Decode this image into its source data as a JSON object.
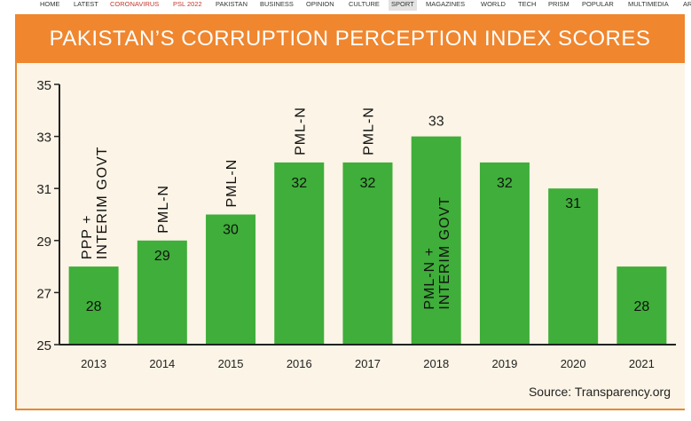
{
  "nav": {
    "items": [
      {
        "label": "HOME",
        "color": "#333333"
      },
      {
        "label": "LATEST",
        "color": "#333333"
      },
      {
        "label": "CORONAVIRUS",
        "color": "#c0392b"
      },
      {
        "label": "PSL 2022",
        "color": "#c0392b"
      },
      {
        "label": "PAKISTAN",
        "color": "#333333"
      },
      {
        "label": "BUSINESS",
        "color": "#333333"
      },
      {
        "label": "OPINION",
        "color": "#333333"
      },
      {
        "label": "CULTURE",
        "color": "#333333"
      },
      {
        "label": "SPORT",
        "color": "#333333",
        "active": true
      },
      {
        "label": "MAGAZINES",
        "color": "#333333"
      },
      {
        "label": "WORLD",
        "color": "#333333"
      },
      {
        "label": "TECH",
        "color": "#333333"
      },
      {
        "label": "PRISM",
        "color": "#333333"
      },
      {
        "label": "POPULAR",
        "color": "#333333"
      },
      {
        "label": "MULTIMEDIA",
        "color": "#333333"
      },
      {
        "label": "AR",
        "color": "#333333"
      }
    ]
  },
  "colors": {
    "bar": "#3fae3a",
    "title_band": "#f0862e",
    "card_background": "#fcf4e6",
    "axis": "#222222"
  },
  "chart_data": {
    "type": "bar",
    "title": "PAKISTAN’S CORRUPTION PERCEPTION INDEX SCORES",
    "categories": [
      "2013",
      "2014",
      "2015",
      "2016",
      "2017",
      "2018",
      "2019",
      "2020",
      "2021"
    ],
    "values": [
      28,
      29,
      30,
      32,
      32,
      33,
      32,
      31,
      28
    ],
    "value_labels": [
      "28",
      "29",
      "30",
      "32",
      "32",
      "33",
      "32",
      "31",
      "28"
    ],
    "party_labels": [
      [
        "PPP +",
        "INTERIM GOVT"
      ],
      [
        "PML-N"
      ],
      [
        "PML-N"
      ],
      [
        "PML-N"
      ],
      [
        "PML-N"
      ],
      [
        "PML-N +",
        "INTERIM GOVT"
      ],
      [],
      [],
      []
    ],
    "ylim": [
      25,
      35
    ],
    "yticks": [
      25,
      27,
      29,
      31,
      33,
      35
    ],
    "grid": false,
    "source": "Source: Transparency.org"
  }
}
